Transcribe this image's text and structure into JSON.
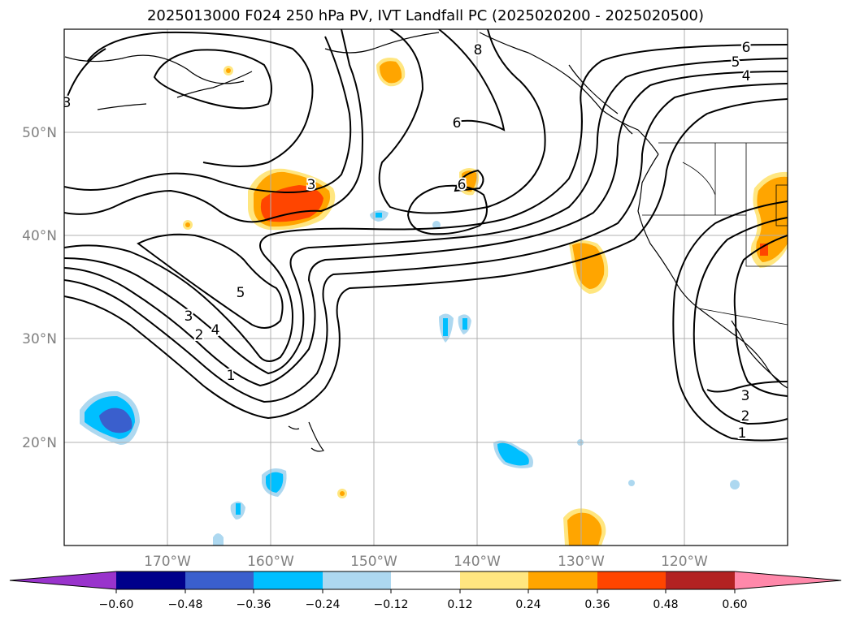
{
  "title": "2025013000 F024 250 hPa PV, IVT Landfall PC (2025020200 - 2025020500)",
  "map": {
    "lat_labels": [
      "50°N",
      "40°N",
      "30°N",
      "20°N"
    ],
    "lon_labels": [
      "170°W",
      "160°W",
      "150°W",
      "140°W",
      "130°W",
      "120°W"
    ],
    "contour_labels": [
      "3",
      "8",
      "6",
      "5",
      "4",
      "6",
      "3",
      "6",
      "5",
      "4",
      "3",
      "2",
      "1",
      "3",
      "2",
      "1"
    ]
  },
  "colorbar": {
    "ticks": [
      "−0.60",
      "−0.48",
      "−0.36",
      "−0.24",
      "−0.12",
      "0.12",
      "0.24",
      "0.36",
      "0.48",
      "0.60"
    ],
    "colors": [
      "#9933cc",
      "#00008b",
      "#3a5fcd",
      "#00bfff",
      "#add8f0",
      "#ffffff",
      "#ffe680",
      "#ffa500",
      "#ff4500",
      "#b22222",
      "#ff88aa"
    ]
  }
}
